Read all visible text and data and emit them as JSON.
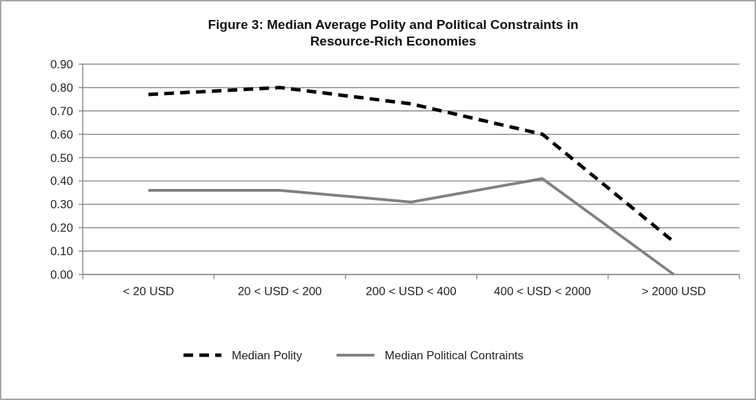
{
  "chart_data": {
    "type": "line",
    "title": "Figure 3: Median Average Polity and Political Constraints in Resource-Rich Economies",
    "categories": [
      "< 20 USD",
      "20 < USD < 200",
      "200 < USD < 400",
      "400 < USD < 2000",
      "> 2000 USD"
    ],
    "series": [
      {
        "name": "Median Polity",
        "color": "#000000",
        "line_style": "dashed",
        "values": [
          0.77,
          0.8,
          0.73,
          0.6,
          0.14
        ]
      },
      {
        "name": "Median Political Contraints",
        "color": "#808080",
        "line_style": "solid",
        "values": [
          0.36,
          0.36,
          0.31,
          0.41,
          0.0
        ]
      }
    ],
    "ylim": [
      0,
      0.9
    ],
    "yticks": [
      {
        "value": 0,
        "label": "0.00"
      },
      {
        "value": 0.1,
        "label": "0.10"
      },
      {
        "value": 0.2,
        "label": "0.20"
      },
      {
        "value": 0.3,
        "label": "0.30"
      },
      {
        "value": 0.4,
        "label": "0.40"
      },
      {
        "value": 0.5,
        "label": "0.50"
      },
      {
        "value": 0.6,
        "label": "0.60"
      },
      {
        "value": 0.7,
        "label": "0.70"
      },
      {
        "value": 0.8,
        "label": "0.80"
      },
      {
        "value": 0.9,
        "label": "0.90"
      }
    ],
    "grid": "y",
    "legend": "bottom",
    "marker": "none"
  }
}
